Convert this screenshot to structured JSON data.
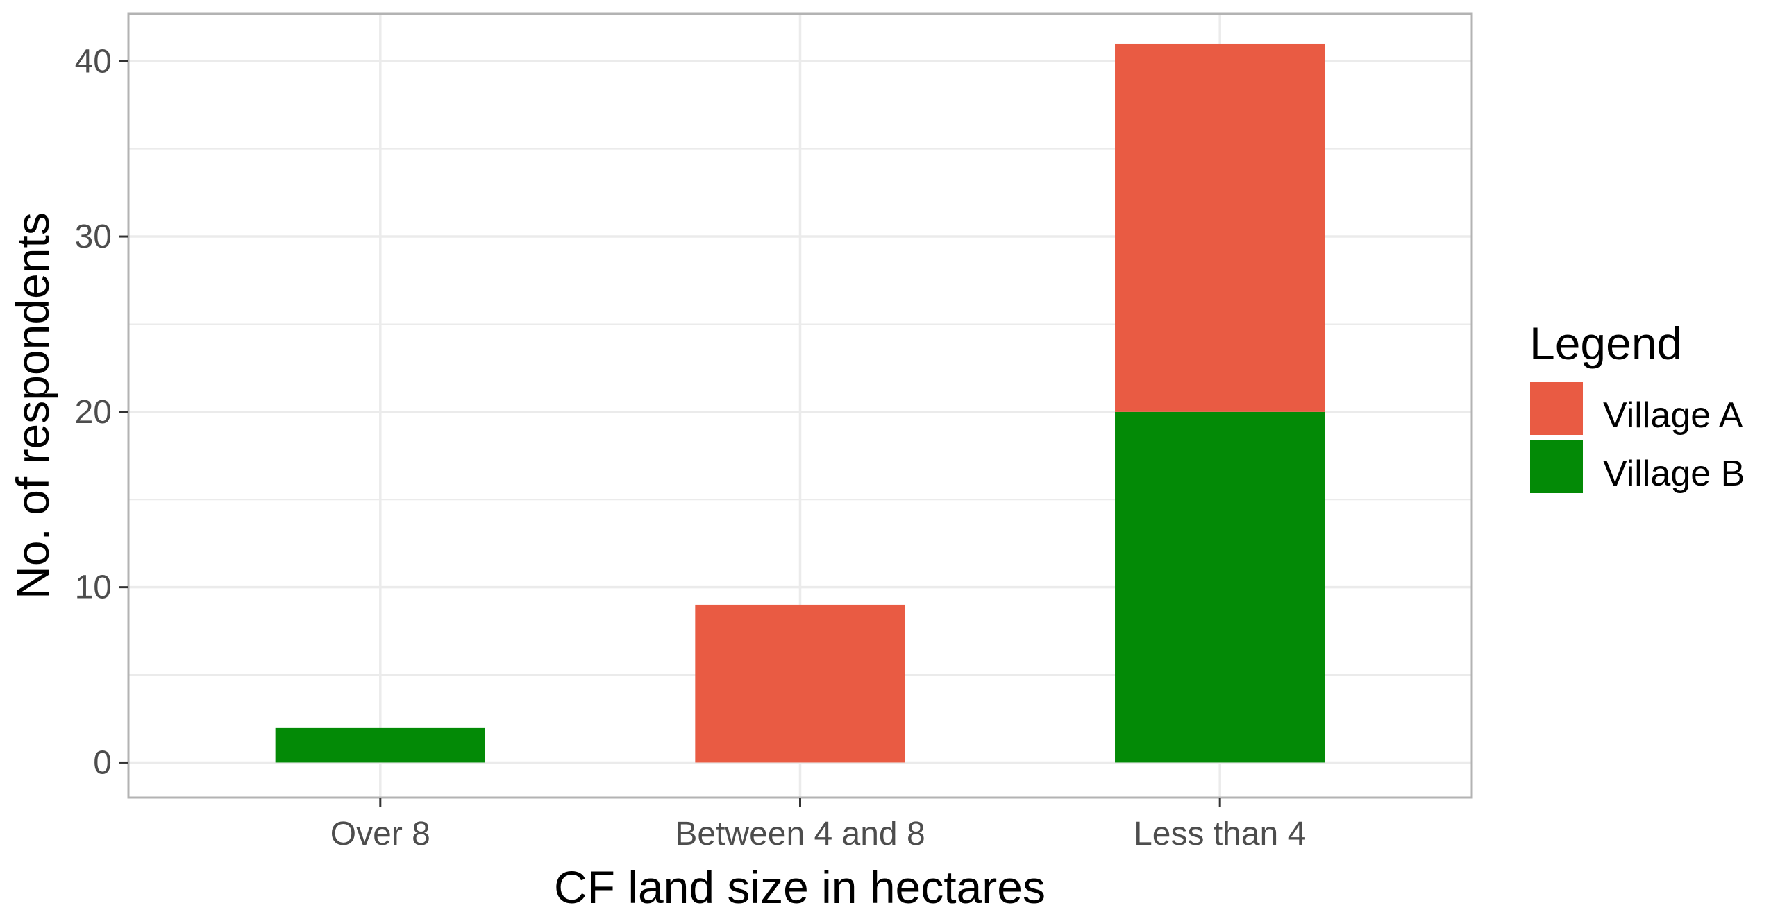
{
  "chart_data": {
    "type": "bar",
    "stacked": true,
    "categories": [
      "Over 8",
      "Between 4 and 8",
      "Less than 4"
    ],
    "series": [
      {
        "name": "Village A",
        "color": "#E95B43",
        "values": [
          0,
          9,
          21
        ]
      },
      {
        "name": "Village B",
        "color": "#038A06",
        "values": [
          2,
          0,
          20
        ]
      }
    ],
    "xlabel": "CF land size in hectares",
    "ylabel": "No. of respondents",
    "ylim": [
      -2,
      42.7
    ],
    "yticks": [
      0,
      10,
      20,
      30,
      40
    ],
    "grid": true,
    "legend": {
      "title": "Legend",
      "position": "right"
    }
  }
}
